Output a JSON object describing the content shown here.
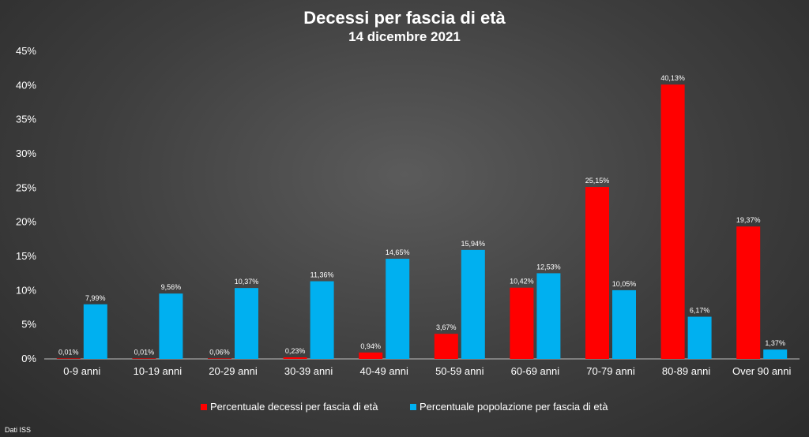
{
  "chart_data": {
    "type": "bar",
    "title": "Decessi per fascia di età",
    "subtitle": "14 dicembre 2021",
    "source": "Dati ISS",
    "categories": [
      "0-9 anni",
      "10-19 anni",
      "20-29 anni",
      "30-39 anni",
      "40-49 anni",
      "50-59 anni",
      "60-69 anni",
      "70-79 anni",
      "80-89 anni",
      "Over 90 anni"
    ],
    "series": [
      {
        "name": "Percentuale decessi per fascia di età",
        "color": "#ff0000",
        "values": [
          0.01,
          0.01,
          0.06,
          0.23,
          0.94,
          3.67,
          10.42,
          25.15,
          40.13,
          19.37
        ],
        "labels": [
          "0,01%",
          "0,01%",
          "0,06%",
          "0,23%",
          "0,94%",
          "3,67%",
          "10,42%",
          "25,15%",
          "40,13%",
          "19,37%"
        ]
      },
      {
        "name": "Percentuale popolazione per fascia di età",
        "color": "#00b0f0",
        "values": [
          7.99,
          9.56,
          10.37,
          11.36,
          14.65,
          15.94,
          12.53,
          10.05,
          6.17,
          1.37
        ],
        "labels": [
          "7,99%",
          "9,56%",
          "10,37%",
          "11,36%",
          "14,65%",
          "15,94%",
          "12,53%",
          "10,05%",
          "6,17%",
          "1,37%"
        ]
      }
    ],
    "ylim": [
      0,
      45
    ],
    "yticks": [
      0,
      5,
      10,
      15,
      20,
      25,
      30,
      35,
      40,
      45
    ],
    "ytick_labels": [
      "0%",
      "5%",
      "10%",
      "15%",
      "20%",
      "25%",
      "30%",
      "35%",
      "40%",
      "45%"
    ],
    "grid": false,
    "legend": "bottom"
  }
}
